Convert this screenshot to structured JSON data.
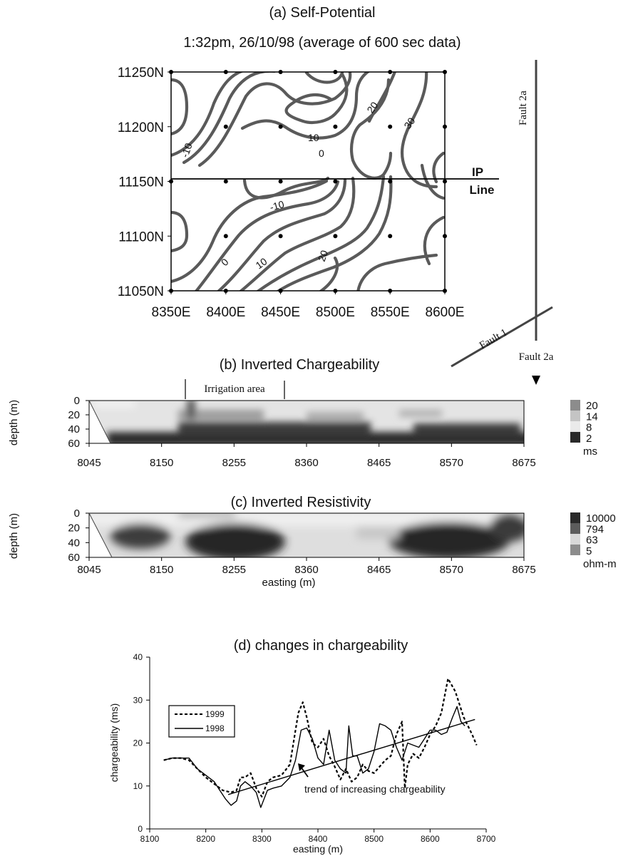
{
  "chart_data": [
    {
      "id": "a",
      "type": "contour",
      "title": "(a) Self-Potential",
      "subtitle": "1:32pm, 26/10/98 (average of 600 sec data)",
      "x_ticks": [
        "8350E",
        "8400E",
        "8450E",
        "8500E",
        "8550E",
        "8600E"
      ],
      "y_ticks": [
        "11250N",
        "11200N",
        "11150N",
        "11100N",
        "11050N"
      ],
      "xlim": [
        8350,
        8600
      ],
      "ylim": [
        11050,
        11250
      ],
      "contour_labels": [
        "-10",
        "10",
        "0",
        "20",
        "30",
        "-10",
        "0",
        "10",
        "20"
      ],
      "ip_line_label": [
        "IP",
        "Line"
      ],
      "fault_labels": [
        "Fault 2a",
        "Fault 1",
        "Fault 2a"
      ]
    },
    {
      "id": "b",
      "type": "heatmap",
      "title": "(b) Inverted Chargeability",
      "ylabel": "depth (m)",
      "y_ticks": [
        "0",
        "20",
        "40",
        "60"
      ],
      "x_ticks": [
        "8045",
        "8150",
        "8255",
        "8360",
        "8465",
        "8570",
        "8675"
      ],
      "xlim": [
        8045,
        8675
      ],
      "ylim": [
        0,
        60
      ],
      "annotation": "Irrigation area",
      "irrigation_range": [
        8220,
        8360
      ],
      "legend_values": [
        "20",
        "14",
        "8",
        "2"
      ],
      "legend_unit": "ms"
    },
    {
      "id": "c",
      "type": "heatmap",
      "title": "(c) Inverted Resistivity",
      "ylabel": "depth (m)",
      "y_ticks": [
        "0",
        "20",
        "40",
        "60"
      ],
      "x_ticks": [
        "8045",
        "8150",
        "8255",
        "8360",
        "8465",
        "8570",
        "8675"
      ],
      "xlabel": "easting (m)",
      "xlim": [
        8045,
        8675
      ],
      "ylim": [
        0,
        60
      ],
      "legend_values": [
        "10000",
        "794",
        "63",
        "5"
      ],
      "legend_unit": "ohm-m"
    },
    {
      "id": "d",
      "type": "line",
      "title": "(d) changes in chargeability",
      "xlabel": "easting (m)",
      "ylabel": "chargeability (ms)",
      "xlim": [
        8100,
        8700
      ],
      "ylim": [
        0,
        40
      ],
      "x_ticks": [
        "8100",
        "8200",
        "8300",
        "8400",
        "8500",
        "8600",
        "8700"
      ],
      "y_ticks": [
        "0",
        "10",
        "20",
        "30",
        "40"
      ],
      "annotation": "trend of increasing chargeability",
      "series": [
        {
          "name": "1999",
          "x": [
            8125,
            8140,
            8155,
            8170,
            8185,
            8200,
            8215,
            8230,
            8245,
            8255,
            8262,
            8270,
            8280,
            8290,
            8300,
            8310,
            8320,
            8335,
            8350,
            8365,
            8373,
            8380,
            8390,
            8400,
            8410,
            8420,
            8430,
            8440,
            8450,
            8460,
            8470,
            8480,
            8490,
            8500,
            8510,
            8520,
            8530,
            8540,
            8550,
            8555,
            8560,
            8570,
            8580,
            8590,
            8600,
            8610,
            8620,
            8632,
            8645,
            8660,
            8675,
            8683
          ],
          "y": [
            16,
            16.5,
            16.5,
            16,
            14,
            12,
            10.5,
            9,
            8.5,
            9,
            12,
            12,
            13,
            9.5,
            7.5,
            11,
            12,
            12.5,
            15,
            27,
            29.5,
            26,
            20,
            19,
            21,
            17,
            14.5,
            11.5,
            14,
            11,
            12,
            15,
            13.5,
            13,
            14.5,
            16,
            17,
            22,
            25,
            9.5,
            15,
            17.5,
            16.5,
            19,
            22,
            24,
            27,
            35,
            32,
            26,
            22,
            19.5
          ]
        },
        {
          "name": "1998",
          "x": [
            8125,
            8140,
            8155,
            8170,
            8185,
            8200,
            8215,
            8225,
            8235,
            8245,
            8255,
            8262,
            8270,
            8280,
            8290,
            8298,
            8310,
            8320,
            8335,
            8350,
            8360,
            8370,
            8380,
            8390,
            8400,
            8410,
            8420,
            8430,
            8440,
            8450,
            8455,
            8462,
            8470,
            8480,
            8490,
            8500,
            8510,
            8520,
            8530,
            8540,
            8550,
            8560,
            8570,
            8580,
            8590,
            8600,
            8610,
            8620,
            8630,
            8640,
            8648,
            8655,
            8662
          ],
          "y": [
            16,
            16.5,
            16.5,
            16.5,
            14,
            12.5,
            11,
            9,
            7,
            5.5,
            6.5,
            10,
            11,
            10,
            8.5,
            5,
            9,
            9.5,
            10,
            12,
            16,
            23,
            23.5,
            21,
            16.5,
            15,
            23,
            16,
            14,
            13,
            24,
            17,
            17,
            13,
            14,
            18,
            24.5,
            24,
            23,
            19,
            16,
            20,
            19.5,
            19,
            21,
            23,
            23,
            22,
            22.5,
            26,
            28.5,
            25,
            24
          ]
        },
        {
          "name": "",
          "x": [
            8240,
            8680
          ],
          "y": [
            8,
            25.5
          ]
        }
      ]
    }
  ]
}
